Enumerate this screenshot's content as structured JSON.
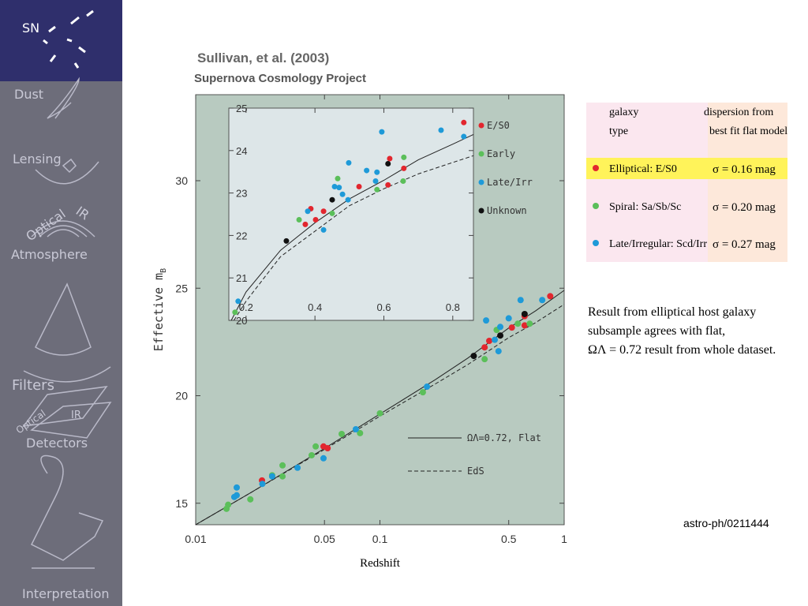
{
  "sidebar": [
    "SN",
    "Dust",
    "Lensing",
    "Optical",
    "IR",
    "Atmosphere",
    "Filters",
    "Optical",
    "IR",
    "Detectors",
    "Interpretation"
  ],
  "header": {
    "title": "Sullivan, et al. (2003)",
    "subtitle": "Supernova Cosmology Project"
  },
  "table": {
    "header": [
      [
        "galaxy",
        "type"
      ],
      [
        "dispersion from",
        "best fit flat model"
      ]
    ],
    "rows": [
      [
        "Elliptical: E/S0",
        "σ = 0.16 mag"
      ],
      [
        "Spiral: Sa/Sb/Sc",
        "σ = 0.20 mag"
      ],
      [
        "Late/Irregular: Scd/Irr",
        "σ = 0.27 mag"
      ]
    ]
  },
  "note": [
    "Result from elliptical host galaxy",
    "subsample agrees with flat,",
    "ΩΛ = 0.72  result from whole dataset."
  ],
  "reference": "astro-ph/0211444",
  "chart_data": [
    {
      "type": "scatter",
      "xlabel": "Redshift",
      "ylabel": "Effective m",
      "ylabel_subscript": "B",
      "log_x": true,
      "xlim": [
        0.01,
        1
      ],
      "ylim": [
        14,
        34
      ],
      "xticks": [
        0.01,
        0.05,
        0.1,
        0.5,
        1
      ],
      "yticks": [
        15,
        20,
        25,
        30
      ],
      "background": "#b8cac0",
      "legend": "lower right",
      "series": [
        {
          "color": "#e2262e",
          "x": [
            0.0229,
            0.0494,
            0.052,
            0.37,
            0.392,
            0.52,
            0.61,
            0.61,
            0.84
          ],
          "values": [
            16.06,
            17.64,
            17.56,
            22.25,
            22.55,
            23.17,
            23.7,
            23.27,
            24.63
          ]
        },
        {
          "color": "#5bbf5a",
          "x": [
            0.0147,
            0.015,
            0.0198,
            0.026,
            0.0296,
            0.0296,
            0.0426,
            0.0448,
            0.062,
            0.078,
            0.1,
            0.171,
            0.37,
            0.43,
            0.56,
            0.65
          ],
          "values": [
            14.74,
            14.93,
            15.18,
            16.3,
            16.76,
            16.25,
            17.23,
            17.64,
            18.22,
            18.26,
            19.18,
            20.16,
            21.7,
            23.06,
            23.35,
            23.35
          ]
        },
        {
          "color": "#1e9ad8",
          "x": [
            0.0162,
            0.0167,
            0.0167,
            0.023,
            0.026,
            0.0357,
            0.0494,
            0.074,
            0.18,
            0.377,
            0.42,
            0.44,
            0.45,
            0.5,
            0.58,
            0.76
          ],
          "values": [
            15.29,
            15.73,
            15.37,
            15.9,
            16.25,
            16.65,
            17.09,
            18.44,
            20.42,
            23.5,
            22.6,
            22.07,
            23.2,
            23.6,
            24.45,
            24.45
          ]
        },
        {
          "color": "#111111",
          "x": [
            0.323,
            0.45,
            0.61
          ],
          "values": [
            21.85,
            22.8,
            23.8
          ]
        }
      ],
      "lines": [
        {
          "name": "ΩΛ=0.72, Flat",
          "dashed": false,
          "x": [
            0.01,
            0.02,
            0.05,
            0.1,
            0.2,
            0.3,
            0.5,
            0.7,
            1.0
          ],
          "values": [
            14.0,
            15.5,
            17.55,
            19.15,
            20.75,
            21.75,
            23.15,
            23.95,
            24.9
          ]
        },
        {
          "name": "EdS",
          "dashed": true,
          "x": [
            0.01,
            0.02,
            0.05,
            0.1,
            0.2,
            0.3,
            0.5,
            0.7,
            1.0
          ],
          "values": [
            14.0,
            15.5,
            17.5,
            19.05,
            20.55,
            21.45,
            22.7,
            23.4,
            24.25
          ]
        }
      ]
    },
    {
      "type": "scatter",
      "log_x": false,
      "xlim": [
        0.15,
        0.86
      ],
      "ylim": [
        20,
        25
      ],
      "xticks": [
        0.2,
        0.4,
        0.6,
        0.8
      ],
      "yticks": [
        20,
        21,
        22,
        23,
        24,
        25
      ],
      "background": "#dde6e8",
      "legend": "upper right",
      "series": [
        {
          "name": "E/S0",
          "color": "#e2262e",
          "x": [
            0.372,
            0.388,
            0.402,
            0.425,
            0.528,
            0.612,
            0.617,
            0.658,
            0.832
          ],
          "values": [
            22.26,
            22.63,
            22.37,
            22.57,
            23.15,
            23.19,
            23.81,
            23.58,
            24.66
          ]
        },
        {
          "name": "Early",
          "color": "#5bbf5a",
          "x": [
            0.168,
            0.354,
            0.45,
            0.466,
            0.58,
            0.658,
            0.656
          ],
          "values": [
            20.19,
            22.37,
            22.52,
            23.34,
            23.08,
            23.84,
            23.28
          ]
        },
        {
          "name": "Late/Irr",
          "color": "#1e9ad8",
          "x": [
            0.177,
            0.379,
            0.425,
            0.457,
            0.47,
            0.48,
            0.496,
            0.498,
            0.55,
            0.576,
            0.58,
            0.594,
            0.766,
            0.832
          ],
          "values": [
            20.45,
            22.57,
            22.13,
            23.15,
            23.13,
            22.97,
            22.84,
            23.71,
            23.53,
            23.28,
            23.49,
            24.44,
            24.48,
            24.33
          ]
        },
        {
          "name": "Unknown",
          "color": "#111111",
          "x": [
            0.317,
            0.45,
            0.612
          ],
          "values": [
            21.87,
            22.84,
            23.69
          ]
        }
      ],
      "lines": [
        {
          "dashed": false,
          "x": [
            0.157,
            0.2,
            0.3,
            0.4,
            0.5,
            0.6,
            0.7,
            0.8,
            0.86
          ],
          "values": [
            20.0,
            20.67,
            21.65,
            22.3,
            22.86,
            23.3,
            23.78,
            24.15,
            24.38
          ]
        },
        {
          "dashed": true,
          "x": [
            0.165,
            0.2,
            0.3,
            0.4,
            0.5,
            0.6,
            0.7,
            0.8,
            0.86
          ],
          "values": [
            20.0,
            20.45,
            21.5,
            22.1,
            22.7,
            23.1,
            23.45,
            23.72,
            23.88
          ]
        }
      ]
    }
  ]
}
